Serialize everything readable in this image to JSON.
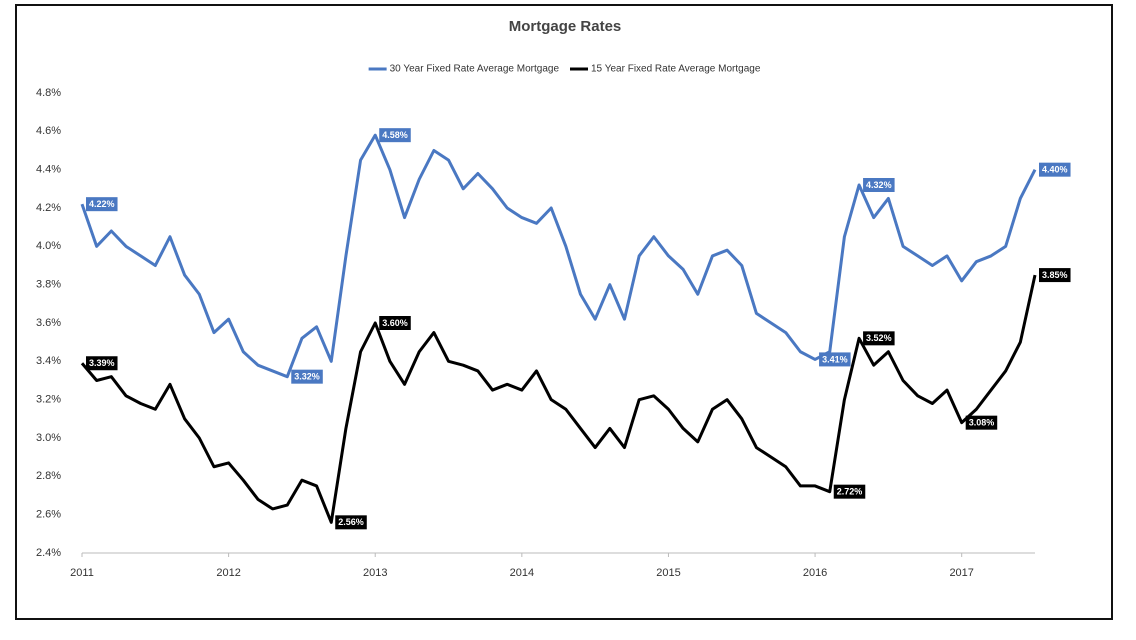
{
  "chart_data": {
    "type": "line",
    "title": "Mortgage Rates",
    "x": [
      2011.0,
      2011.1,
      2011.2,
      2011.3,
      2011.4,
      2011.5,
      2011.6,
      2011.7,
      2011.8,
      2011.9,
      2012.0,
      2012.1,
      2012.2,
      2012.3,
      2012.4,
      2012.5,
      2012.6,
      2012.7,
      2012.8,
      2012.9,
      2013.0,
      2013.1,
      2013.2,
      2013.3,
      2013.4,
      2013.5,
      2013.6,
      2013.7,
      2013.8,
      2013.9,
      2014.0,
      2014.1,
      2014.2,
      2014.3,
      2014.4,
      2014.5,
      2014.6,
      2014.7,
      2014.8,
      2014.9,
      2015.0,
      2015.1,
      2015.2,
      2015.3,
      2015.4,
      2015.5,
      2015.6,
      2015.7,
      2015.8,
      2015.9,
      2016.0,
      2016.1,
      2016.2,
      2016.3,
      2016.4,
      2016.5,
      2016.6,
      2016.7,
      2016.8,
      2016.9,
      2017.0,
      2017.1,
      2017.2,
      2017.3,
      2017.4,
      2017.5
    ],
    "series": [
      {
        "name": "30 Year Fixed Rate Average Mortgage",
        "color": "#4a78c2",
        "values": [
          4.22,
          4.0,
          4.08,
          4.0,
          3.95,
          3.9,
          4.05,
          3.85,
          3.75,
          3.55,
          3.62,
          3.45,
          3.38,
          3.35,
          3.32,
          3.52,
          3.58,
          3.4,
          3.95,
          4.45,
          4.58,
          4.4,
          4.15,
          4.35,
          4.5,
          4.45,
          4.3,
          4.38,
          4.3,
          4.2,
          4.15,
          4.12,
          4.2,
          4.0,
          3.75,
          3.62,
          3.8,
          3.62,
          3.95,
          4.05,
          3.95,
          3.88,
          3.75,
          3.95,
          3.98,
          3.9,
          3.65,
          3.6,
          3.55,
          3.45,
          3.41,
          3.45,
          4.05,
          4.32,
          4.15,
          4.25,
          4.0,
          3.95,
          3.9,
          3.95,
          3.82,
          3.92,
          3.95,
          4.0,
          4.25,
          4.4
        ],
        "value_labels": [
          "4.22%",
          null,
          null,
          null,
          null,
          null,
          null,
          null,
          null,
          null,
          null,
          null,
          null,
          null,
          "3.32%",
          null,
          null,
          null,
          null,
          null,
          "4.58%",
          null,
          null,
          null,
          null,
          null,
          null,
          null,
          null,
          null,
          null,
          null,
          null,
          null,
          null,
          null,
          null,
          null,
          null,
          null,
          null,
          null,
          null,
          null,
          null,
          null,
          null,
          null,
          null,
          null,
          "3.41%",
          null,
          null,
          "4.32%",
          null,
          null,
          null,
          null,
          null,
          null,
          null,
          null,
          null,
          null,
          null,
          "4.40%"
        ]
      },
      {
        "name": "15 Year Fixed Rate Average Mortgage",
        "color": "#000000",
        "values": [
          3.39,
          3.3,
          3.32,
          3.22,
          3.18,
          3.15,
          3.28,
          3.1,
          3.0,
          2.85,
          2.87,
          2.78,
          2.68,
          2.63,
          2.65,
          2.78,
          2.75,
          2.56,
          3.05,
          3.45,
          3.6,
          3.4,
          3.28,
          3.45,
          3.55,
          3.4,
          3.38,
          3.35,
          3.25,
          3.28,
          3.25,
          3.35,
          3.2,
          3.15,
          3.05,
          2.95,
          3.05,
          2.95,
          3.2,
          3.22,
          3.15,
          3.05,
          2.98,
          3.15,
          3.2,
          3.1,
          2.95,
          2.9,
          2.85,
          2.75,
          2.75,
          2.72,
          3.2,
          3.52,
          3.38,
          3.45,
          3.3,
          3.22,
          3.18,
          3.25,
          3.08,
          3.15,
          3.25,
          3.35,
          3.5,
          3.85
        ],
        "value_labels": [
          "3.39%",
          null,
          null,
          null,
          null,
          null,
          null,
          null,
          null,
          null,
          null,
          null,
          null,
          null,
          null,
          null,
          null,
          "2.56%",
          null,
          null,
          "3.60%",
          null,
          null,
          null,
          null,
          null,
          null,
          null,
          null,
          null,
          null,
          null,
          null,
          null,
          null,
          null,
          null,
          null,
          null,
          null,
          null,
          null,
          null,
          null,
          null,
          null,
          null,
          null,
          null,
          null,
          null,
          "2.72%",
          null,
          "3.52%",
          null,
          null,
          null,
          null,
          null,
          null,
          "3.08%",
          null,
          null,
          null,
          null,
          "3.85%"
        ]
      }
    ],
    "xlim": [
      2011,
      2017.5
    ],
    "xticks": [
      2011,
      2012,
      2013,
      2014,
      2015,
      2016,
      2017
    ],
    "ylim": [
      2.4,
      4.8
    ],
    "yticks": [
      {
        "value": 2.4,
        "label": "2.4%"
      },
      {
        "value": 2.6,
        "label": "2.6%"
      },
      {
        "value": 2.8,
        "label": "2.8%"
      },
      {
        "value": 3.0,
        "label": "3.0%"
      },
      {
        "value": 3.2,
        "label": "3.2%"
      },
      {
        "value": 3.4,
        "label": "3.4%"
      },
      {
        "value": 3.6,
        "label": "3.6%"
      },
      {
        "value": 3.8,
        "label": "3.8%"
      },
      {
        "value": 4.0,
        "label": "4.0%"
      },
      {
        "value": 4.2,
        "label": "4.2%"
      },
      {
        "value": 4.4,
        "label": "4.4%"
      },
      {
        "value": 4.6,
        "label": "4.6%"
      },
      {
        "value": 4.8,
        "label": "4.8%"
      }
    ],
    "grid": false,
    "legend": "top"
  }
}
